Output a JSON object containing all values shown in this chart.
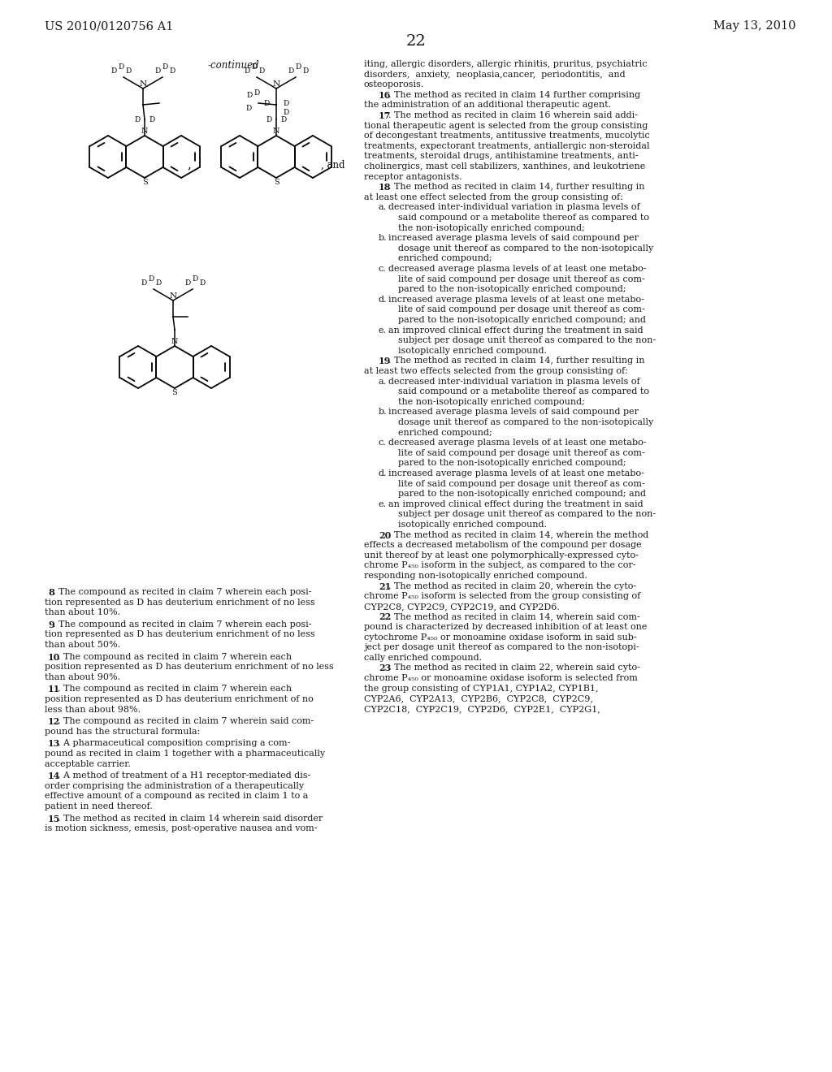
{
  "bg": "#ffffff",
  "fg": "#1a1a1a",
  "header_left": "US 2010/0120756 A1",
  "header_right": "May 13, 2010",
  "page_num": "22",
  "col_split": 430,
  "lmargin": 55,
  "rmargin": 980,
  "body_fs": 8.0,
  "header_fs": 10.5,
  "pagenum_fs": 14.0,
  "lh": 12.6
}
